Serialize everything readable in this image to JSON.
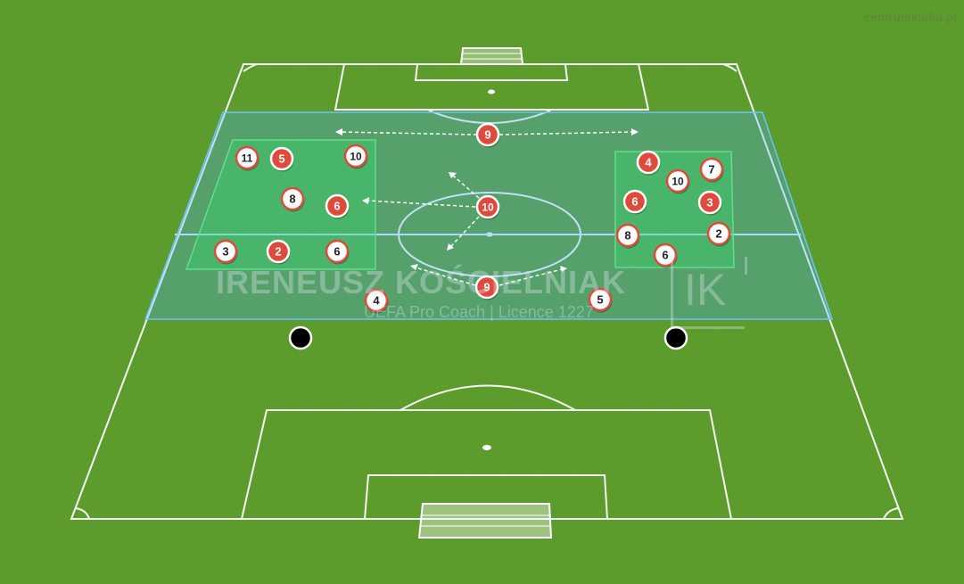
{
  "site_label": "centrumklubu.pl",
  "watermark": {
    "name": "IRENEUSZ KOŚCIELNIAK",
    "subtitle": "UEFA Pro Coach   |   Licence 1227",
    "logo": "IK"
  },
  "colors": {
    "grass": "#5a9a2a",
    "lines": "#ffffff",
    "zone": "#4ab0ff",
    "box": "#2ecc71",
    "player_red": "#e04a3c",
    "player_white": "#ffffff"
  },
  "players": [
    {
      "label": "9",
      "team": "red"
    },
    {
      "label": "11",
      "team": "white"
    },
    {
      "label": "5",
      "team": "red"
    },
    {
      "label": "10",
      "team": "white"
    },
    {
      "label": "8",
      "team": "white"
    },
    {
      "label": "6",
      "team": "red"
    },
    {
      "label": "10",
      "team": "red"
    },
    {
      "label": "3",
      "team": "white"
    },
    {
      "label": "2",
      "team": "red"
    },
    {
      "label": "6",
      "team": "white"
    },
    {
      "label": "9",
      "team": "red"
    },
    {
      "label": "4",
      "team": "white"
    },
    {
      "label": "5",
      "team": "white"
    },
    {
      "label": "4",
      "team": "red"
    },
    {
      "label": "10",
      "team": "white"
    },
    {
      "label": "7",
      "team": "white"
    },
    {
      "label": "6",
      "team": "red"
    },
    {
      "label": "3",
      "team": "red"
    },
    {
      "label": "8",
      "team": "white"
    },
    {
      "label": "2",
      "team": "white"
    },
    {
      "label": "6",
      "team": "white"
    }
  ],
  "markers": [
    "black-marker",
    "black-marker"
  ]
}
